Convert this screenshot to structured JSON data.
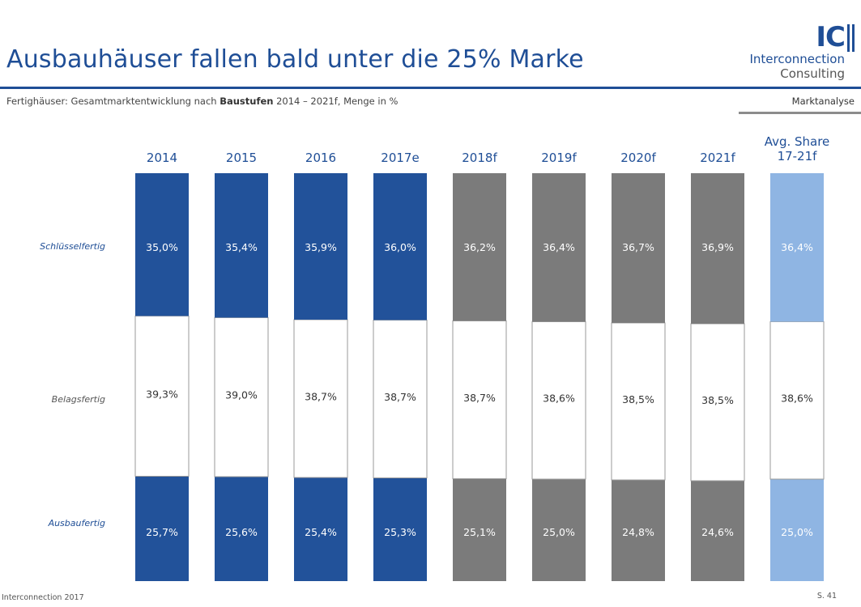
{
  "header": {
    "title": "Ausbauhäuser fallen bald unter die 25% Marke",
    "subtitle_pre": "Fertighäuser: Gesamtmarktentwicklung nach ",
    "subtitle_bold": "Baustufen",
    "subtitle_post": " 2014 – 2021f, Menge in %",
    "section": "Marktanalyse"
  },
  "logo": {
    "mark": "IC",
    "line1": "Interconnection",
    "line2": "Consulting"
  },
  "footer": {
    "left": "Interconnection 2017",
    "right": "S. 41"
  },
  "colors": {
    "actual": "#22529a",
    "forecast": "#7b7b7b",
    "average": "#8fb5e3",
    "header_text": "#1f4e96"
  },
  "chart_data": {
    "type": "bar",
    "stacked": true,
    "title": "",
    "categories": [
      "2014",
      "2015",
      "2016",
      "2017e",
      "2018f",
      "2019f",
      "2020f",
      "2021f",
      "Avg. Share 17-21f"
    ],
    "category_kind": [
      "actual",
      "actual",
      "actual",
      "actual",
      "forecast",
      "forecast",
      "forecast",
      "forecast",
      "average"
    ],
    "series": [
      {
        "name": "Ausbaufertig",
        "values": [
          25.7,
          25.6,
          25.4,
          25.3,
          25.1,
          25.0,
          24.8,
          24.6,
          25.0
        ],
        "labels": [
          "25,7%",
          "25,6%",
          "25,4%",
          "25,3%",
          "25,1%",
          "25,0%",
          "24,8%",
          "24,6%",
          "25,0%"
        ]
      },
      {
        "name": "Belagsfertig",
        "values": [
          39.3,
          39.0,
          38.7,
          38.7,
          38.7,
          38.6,
          38.5,
          38.5,
          38.6
        ],
        "labels": [
          "39,3%",
          "39,0%",
          "38,7%",
          "38,7%",
          "38,7%",
          "38,6%",
          "38,5%",
          "38,5%",
          "38,6%"
        ]
      },
      {
        "name": "Schlüsselfertig",
        "values": [
          35.0,
          35.4,
          35.9,
          36.0,
          36.2,
          36.4,
          36.7,
          36.9,
          36.4
        ],
        "labels": [
          "35,0%",
          "35,4%",
          "35,9%",
          "36,0%",
          "36,2%",
          "36,4%",
          "36,7%",
          "36,9%",
          "36,4%"
        ]
      }
    ],
    "ylim": [
      0,
      100
    ],
    "grid": false,
    "legend": "left"
  }
}
